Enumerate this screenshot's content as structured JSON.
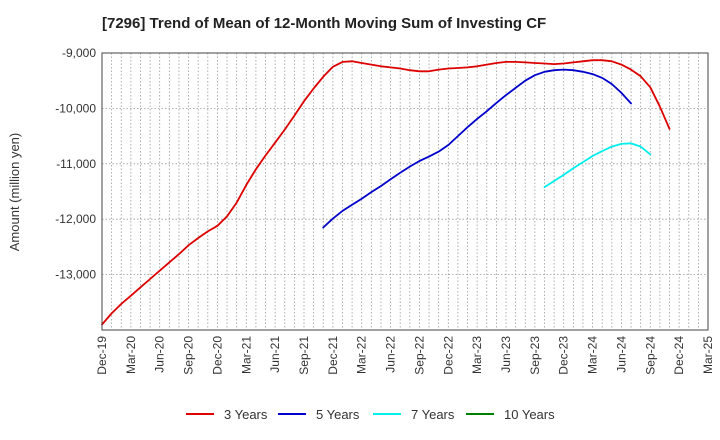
{
  "chart_data": {
    "type": "line",
    "title": "[7296]  Trend of Mean of 12-Month Moving Sum of Investing CF",
    "ylabel": "Amount (million yen)",
    "xlabel": "",
    "ylim": [
      -14000,
      -9000
    ],
    "y_ticks": [
      -9000,
      -10000,
      -11000,
      -12000,
      -13000
    ],
    "y_tick_labels": [
      "-9,000",
      "-10,000",
      "-11,000",
      "-12,000",
      "-13,000"
    ],
    "x_range": [
      "2019-12",
      "2025-03"
    ],
    "x_tick_labels": [
      "Dec-19",
      "Mar-20",
      "Jun-20",
      "Sep-20",
      "Dec-20",
      "Mar-21",
      "Jun-21",
      "Sep-21",
      "Dec-21",
      "Mar-22",
      "Jun-22",
      "Sep-22",
      "Dec-22",
      "Mar-23",
      "Jun-23",
      "Sep-23",
      "Dec-23",
      "Mar-24",
      "Jun-24",
      "Sep-24",
      "Dec-24",
      "Mar-25"
    ],
    "grid": true,
    "legend_position": "bottom",
    "series": [
      {
        "name": "3 Years",
        "color": "#dd0000",
        "points": [
          [
            "2019-12",
            -13900
          ],
          [
            "2020-01",
            -13700
          ],
          [
            "2020-02",
            -13530
          ],
          [
            "2020-03",
            -13380
          ],
          [
            "2020-04",
            -13230
          ],
          [
            "2020-05",
            -13080
          ],
          [
            "2020-06",
            -12930
          ],
          [
            "2020-07",
            -12780
          ],
          [
            "2020-08",
            -12630
          ],
          [
            "2020-09",
            -12470
          ],
          [
            "2020-10",
            -12340
          ],
          [
            "2020-11",
            -12220
          ],
          [
            "2020-12",
            -12120
          ],
          [
            "2021-01",
            -11950
          ],
          [
            "2021-02",
            -11700
          ],
          [
            "2021-03",
            -11380
          ],
          [
            "2021-04",
            -11100
          ],
          [
            "2021-05",
            -10850
          ],
          [
            "2021-06",
            -10620
          ],
          [
            "2021-07",
            -10380
          ],
          [
            "2021-08",
            -10130
          ],
          [
            "2021-09",
            -9870
          ],
          [
            "2021-10",
            -9640
          ],
          [
            "2021-11",
            -9430
          ],
          [
            "2021-12",
            -9250
          ],
          [
            "2022-01",
            -9160
          ],
          [
            "2022-02",
            -9150
          ],
          [
            "2022-03",
            -9180
          ],
          [
            "2022-04",
            -9210
          ],
          [
            "2022-05",
            -9240
          ],
          [
            "2022-06",
            -9260
          ],
          [
            "2022-07",
            -9280
          ],
          [
            "2022-08",
            -9310
          ],
          [
            "2022-09",
            -9330
          ],
          [
            "2022-10",
            -9330
          ],
          [
            "2022-11",
            -9300
          ],
          [
            "2022-12",
            -9280
          ],
          [
            "2023-01",
            -9270
          ],
          [
            "2023-02",
            -9260
          ],
          [
            "2023-03",
            -9240
          ],
          [
            "2023-04",
            -9210
          ],
          [
            "2023-05",
            -9180
          ],
          [
            "2023-06",
            -9160
          ],
          [
            "2023-07",
            -9160
          ],
          [
            "2023-08",
            -9170
          ],
          [
            "2023-09",
            -9180
          ],
          [
            "2023-10",
            -9190
          ],
          [
            "2023-11",
            -9200
          ],
          [
            "2023-12",
            -9190
          ],
          [
            "2024-01",
            -9170
          ],
          [
            "2024-02",
            -9150
          ],
          [
            "2024-03",
            -9130
          ],
          [
            "2024-04",
            -9130
          ],
          [
            "2024-05",
            -9150
          ],
          [
            "2024-06",
            -9210
          ],
          [
            "2024-07",
            -9300
          ],
          [
            "2024-08",
            -9420
          ],
          [
            "2024-09",
            -9620
          ],
          [
            "2024-10",
            -9970
          ],
          [
            "2024-11",
            -10370
          ]
        ]
      },
      {
        "name": "5 Years",
        "color": "#0000cc",
        "points": [
          [
            "2021-11",
            -12150
          ],
          [
            "2021-12",
            -11990
          ],
          [
            "2022-01",
            -11850
          ],
          [
            "2022-02",
            -11740
          ],
          [
            "2022-03",
            -11630
          ],
          [
            "2022-04",
            -11510
          ],
          [
            "2022-05",
            -11400
          ],
          [
            "2022-06",
            -11280
          ],
          [
            "2022-07",
            -11160
          ],
          [
            "2022-08",
            -11050
          ],
          [
            "2022-09",
            -10950
          ],
          [
            "2022-10",
            -10870
          ],
          [
            "2022-11",
            -10780
          ],
          [
            "2022-12",
            -10660
          ],
          [
            "2023-01",
            -10500
          ],
          [
            "2023-02",
            -10340
          ],
          [
            "2023-03",
            -10190
          ],
          [
            "2023-04",
            -10050
          ],
          [
            "2023-05",
            -9900
          ],
          [
            "2023-06",
            -9760
          ],
          [
            "2023-07",
            -9630
          ],
          [
            "2023-08",
            -9500
          ],
          [
            "2023-09",
            -9400
          ],
          [
            "2023-10",
            -9340
          ],
          [
            "2023-11",
            -9310
          ],
          [
            "2023-12",
            -9300
          ],
          [
            "2024-01",
            -9310
          ],
          [
            "2024-02",
            -9340
          ],
          [
            "2024-03",
            -9380
          ],
          [
            "2024-04",
            -9450
          ],
          [
            "2024-05",
            -9560
          ],
          [
            "2024-06",
            -9720
          ],
          [
            "2024-07",
            -9910
          ]
        ]
      },
      {
        "name": "7 Years",
        "color": "#00eeee",
        "points": [
          [
            "2023-10",
            -11420
          ],
          [
            "2023-11",
            -11310
          ],
          [
            "2023-12",
            -11200
          ],
          [
            "2024-01",
            -11080
          ],
          [
            "2024-02",
            -10970
          ],
          [
            "2024-03",
            -10860
          ],
          [
            "2024-04",
            -10770
          ],
          [
            "2024-05",
            -10690
          ],
          [
            "2024-06",
            -10640
          ],
          [
            "2024-07",
            -10630
          ],
          [
            "2024-08",
            -10690
          ],
          [
            "2024-09",
            -10830
          ]
        ]
      },
      {
        "name": "10 Years",
        "color": "#008000",
        "points": []
      }
    ]
  }
}
